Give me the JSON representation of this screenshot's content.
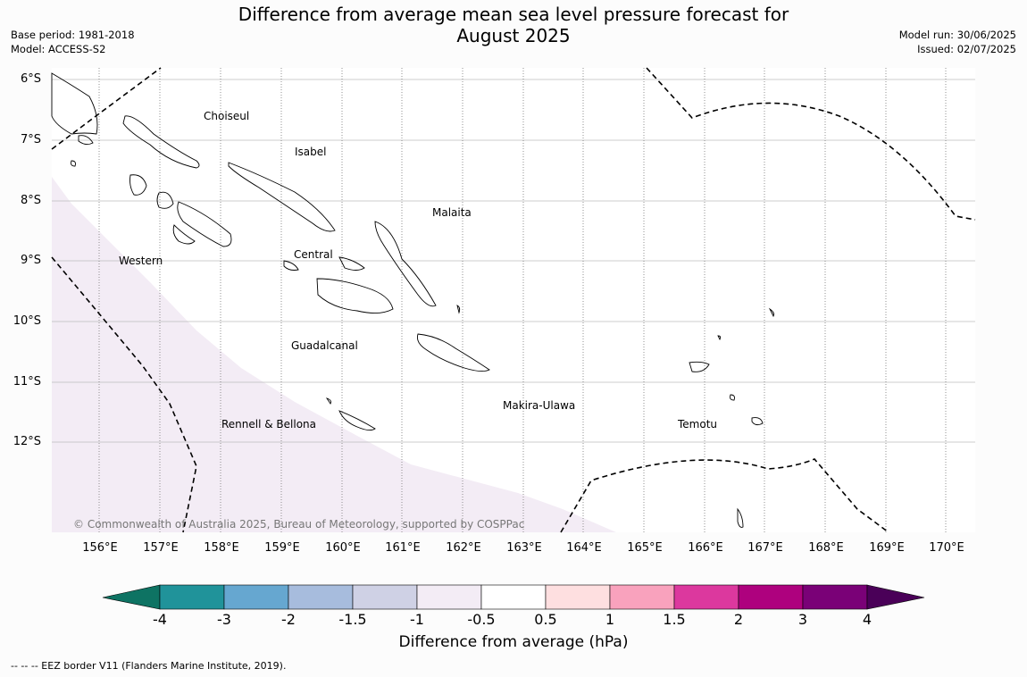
{
  "title": {
    "line1": "Difference from average mean sea level pressure forecast for",
    "line2": "August 2025"
  },
  "meta_left": {
    "base_period": "Base period: 1981-2018",
    "model": "Model: ACCESS-S2"
  },
  "meta_right": {
    "model_run": "Model run: 30/06/2025",
    "issued": "Issued: 02/07/2025"
  },
  "map": {
    "lat_labels": [
      "6°S",
      "7°S",
      "8°S",
      "9°S",
      "10°S",
      "11°S",
      "12°S"
    ],
    "lon_labels": [
      "156°E",
      "157°E",
      "158°E",
      "159°E",
      "160°E",
      "161°E",
      "162°E",
      "163°E",
      "164°E",
      "165°E",
      "166°E",
      "167°E",
      "168°E",
      "169°E",
      "170°E"
    ],
    "places": [
      "Choiseul",
      "Isabel",
      "Malaita",
      "Western",
      "Central",
      "Guadalcanal",
      "Makira-Ulawa",
      "Rennell & Bellona",
      "Temotu"
    ],
    "shaded_region_category": "-1 to -0.5",
    "shade_color": "#f3ecf5",
    "copyright": "© Commonwealth of Australia 2025, Bureau of Meteorology, supported by COSPPac"
  },
  "colorbar": {
    "ticks": [
      "-4",
      "-3",
      "-2",
      "-1.5",
      "-1",
      "-0.5",
      "0.5",
      "1",
      "1.5",
      "2",
      "3",
      "4"
    ],
    "colors": [
      "#0e7363",
      "#20939a",
      "#66a7d0",
      "#a7bcdd",
      "#cfd1e5",
      "#f3ecf5",
      "#ffffff",
      "#fedfe0",
      "#f9a2bd",
      "#dc389e",
      "#ae017e",
      "#7a0177",
      "#4a0058"
    ],
    "label": "Difference from average (hPa)"
  },
  "legend_note": "--  --  -- EEZ border V11 (Flanders Marine Institute, 2019)."
}
